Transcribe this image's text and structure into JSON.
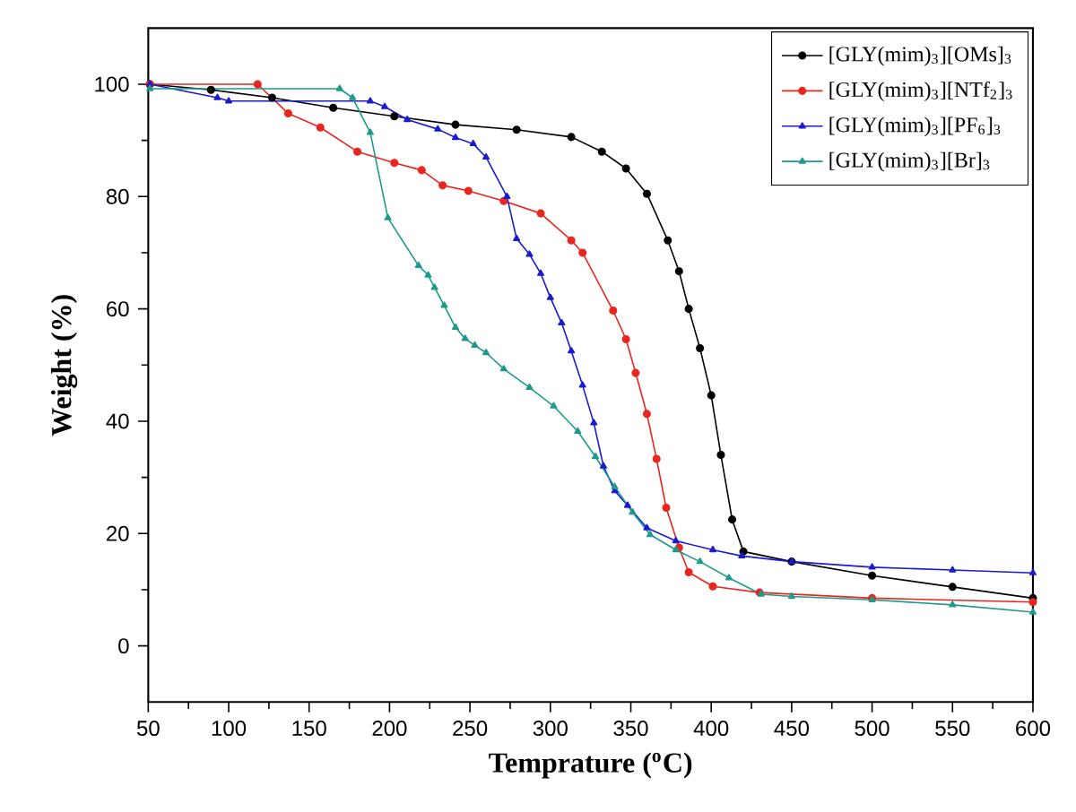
{
  "chart_data": {
    "type": "line",
    "xlabel": "Temprature ($^{o}$C)",
    "ylabel": "Weight (%)",
    "xlim": [
      50,
      600
    ],
    "ylim": [
      -10,
      110
    ],
    "xticks": [
      50,
      100,
      150,
      200,
      250,
      300,
      350,
      400,
      450,
      500,
      550,
      600
    ],
    "yticks": [
      0,
      20,
      40,
      60,
      80,
      100
    ],
    "legend": "top right",
    "grid": false,
    "series": [
      {
        "name": "[GLY(mim)$_{3}$][OMs]$_{3}$",
        "color": "#000000",
        "marker": "circle",
        "x": [
          51,
          89,
          127,
          165,
          203,
          241,
          279,
          313,
          332,
          347,
          360,
          373,
          380,
          386,
          393,
          400,
          406,
          413,
          420,
          450,
          500,
          550,
          600
        ],
        "values": [
          100,
          99,
          97.6,
          95.8,
          94.3,
          92.8,
          91.9,
          90.6,
          88,
          85,
          80.5,
          72.2,
          66.7,
          60,
          53,
          44.6,
          34,
          22.5,
          16.8,
          15,
          12.5,
          10.5,
          8.5
        ]
      },
      {
        "name": "[GLY(mim)$_{3}$][NTf$_{2}$]$_{3}$",
        "color": "#e8261f",
        "marker": "circle",
        "x": [
          51,
          118,
          137,
          157,
          180,
          203,
          220,
          233,
          249,
          271,
          294,
          313,
          320,
          339,
          347,
          353,
          360,
          366,
          372,
          380,
          386,
          401,
          430,
          500,
          600
        ],
        "values": [
          100,
          100,
          94.8,
          92.3,
          88,
          86,
          84.7,
          82,
          81,
          79.2,
          77,
          72.2,
          70,
          59.7,
          54.6,
          48.6,
          41.3,
          33.3,
          24.6,
          17.5,
          13.1,
          10.6,
          9.5,
          8.5,
          7.8
        ]
      },
      {
        "name": "[GLY(mim)$_{3}$][PF$_{6}$]$_{3}$",
        "color": "#1a1ad0",
        "marker": "triangle",
        "x": [
          51,
          93,
          100,
          188,
          197,
          211,
          230,
          241,
          252,
          260,
          273,
          279,
          287,
          294,
          300,
          307,
          313,
          320,
          327,
          333,
          340,
          348,
          360,
          378,
          401,
          419,
          450,
          500,
          550,
          600
        ],
        "values": [
          100,
          97.6,
          97,
          97,
          96,
          93.7,
          92,
          90.5,
          89.4,
          87,
          80,
          72.5,
          69.7,
          66.3,
          62,
          57.5,
          52.5,
          46.4,
          39.7,
          32,
          27.6,
          25,
          21,
          18.7,
          17.1,
          16,
          15,
          14,
          13.5,
          13
        ]
      },
      {
        "name": "[GLY(mim)$_{3}$][Br]$_{3}$",
        "color": "#1e9a8a",
        "marker": "triangle",
        "x": [
          51,
          169,
          177,
          188,
          199,
          218,
          224,
          228,
          234,
          241,
          247,
          253,
          260,
          271,
          287,
          302,
          317,
          328,
          340,
          351,
          362,
          378,
          393,
          411,
          431,
          450,
          500,
          550,
          600
        ],
        "values": [
          99.2,
          99.2,
          97.6,
          91.4,
          76.2,
          67.7,
          66,
          63.8,
          60.6,
          56.7,
          54.7,
          53.5,
          52.2,
          49.3,
          46,
          42.7,
          38.2,
          33.7,
          28.3,
          23.8,
          19.8,
          17.1,
          15,
          12.1,
          9.2,
          8.8,
          8.2,
          7.3,
          6
        ]
      }
    ]
  }
}
